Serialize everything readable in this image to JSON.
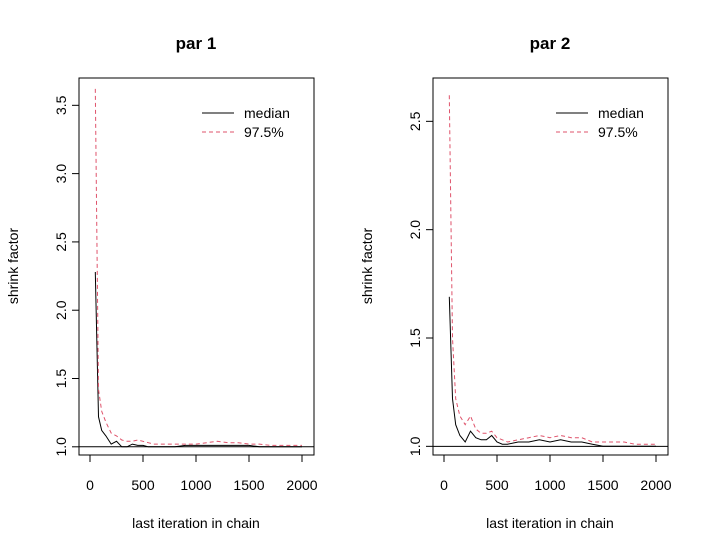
{
  "chart_data": [
    {
      "type": "line",
      "title": "par 1",
      "xlabel": "last iteration in chain",
      "ylabel": "shrink factor",
      "xlim": [
        0,
        2000
      ],
      "ylim": [
        0.94,
        3.7
      ],
      "xticks": [
        0,
        500,
        1000,
        1500,
        2000
      ],
      "xtick_labels": [
        "0",
        "500",
        "1000",
        "1500",
        "2000"
      ],
      "yticks": [
        1.0,
        1.5,
        2.0,
        2.5,
        3.0,
        3.5
      ],
      "ytick_labels": [
        "1.0",
        "1.5",
        "2.0",
        "2.5",
        "3.0",
        "3.5"
      ],
      "reference_line": 1,
      "legend_position": "top-right",
      "series": [
        {
          "name": "median",
          "color": "#000000",
          "dash": "solid",
          "x": [
            50,
            80,
            110,
            150,
            200,
            250,
            300,
            350,
            400,
            450,
            500,
            550,
            600,
            700,
            800,
            900,
            1000,
            1100,
            1200,
            1300,
            1400,
            1500,
            1600,
            1700,
            1800,
            1900,
            2000
          ],
          "y": [
            2.28,
            1.22,
            1.12,
            1.08,
            1.02,
            1.04,
            1.0,
            1.0,
            1.02,
            1.01,
            1.01,
            1.0,
            1.0,
            1.0,
            1.0,
            1.01,
            1.01,
            1.01,
            1.01,
            1.01,
            1.01,
            1.01,
            1.0,
            1.0,
            1.0,
            1.0,
            1.0
          ]
        },
        {
          "name": "97.5%",
          "color": "#df536b",
          "dash": "dashed",
          "x": [
            50,
            80,
            110,
            150,
            200,
            250,
            300,
            350,
            400,
            450,
            500,
            550,
            600,
            700,
            800,
            900,
            1000,
            1100,
            1200,
            1300,
            1400,
            1500,
            1600,
            1700,
            1800,
            1900,
            2000
          ],
          "y": [
            3.62,
            1.42,
            1.26,
            1.18,
            1.1,
            1.08,
            1.05,
            1.04,
            1.04,
            1.05,
            1.04,
            1.03,
            1.02,
            1.02,
            1.02,
            1.02,
            1.02,
            1.03,
            1.04,
            1.03,
            1.03,
            1.02,
            1.02,
            1.01,
            1.01,
            1.01,
            1.01
          ]
        }
      ]
    },
    {
      "type": "line",
      "title": "par 2",
      "xlabel": "last iteration in chain",
      "ylabel": "shrink factor",
      "xlim": [
        0,
        2000
      ],
      "ylim": [
        0.96,
        2.7
      ],
      "xticks": [
        0,
        500,
        1000,
        1500,
        2000
      ],
      "xtick_labels": [
        "0",
        "500",
        "1000",
        "1500",
        "2000"
      ],
      "yticks": [
        1.0,
        1.5,
        2.0,
        2.5
      ],
      "ytick_labels": [
        "1.0",
        "1.5",
        "2.0",
        "2.5"
      ],
      "reference_line": 1,
      "legend_position": "top-right",
      "series": [
        {
          "name": "median",
          "color": "#000000",
          "dash": "solid",
          "x": [
            50,
            80,
            110,
            150,
            200,
            250,
            300,
            350,
            400,
            450,
            500,
            550,
            600,
            700,
            800,
            900,
            1000,
            1100,
            1200,
            1300,
            1400,
            1500,
            1600,
            1700,
            1800,
            1900,
            2000
          ],
          "y": [
            1.69,
            1.22,
            1.1,
            1.05,
            1.02,
            1.07,
            1.04,
            1.03,
            1.03,
            1.05,
            1.02,
            1.01,
            1.01,
            1.02,
            1.02,
            1.03,
            1.02,
            1.03,
            1.02,
            1.02,
            1.01,
            1.0,
            1.0,
            1.0,
            1.0,
            1.0,
            1.0
          ]
        },
        {
          "name": "97.5%",
          "color": "#df536b",
          "dash": "dashed",
          "x": [
            50,
            80,
            110,
            150,
            200,
            250,
            300,
            350,
            400,
            450,
            500,
            550,
            600,
            700,
            800,
            900,
            1000,
            1100,
            1200,
            1300,
            1400,
            1500,
            1600,
            1700,
            1800,
            1900,
            2000
          ],
          "y": [
            2.62,
            1.5,
            1.22,
            1.14,
            1.1,
            1.14,
            1.08,
            1.06,
            1.06,
            1.07,
            1.04,
            1.03,
            1.02,
            1.03,
            1.04,
            1.05,
            1.04,
            1.05,
            1.04,
            1.04,
            1.02,
            1.02,
            1.02,
            1.02,
            1.01,
            1.01,
            1.01
          ]
        }
      ]
    }
  ]
}
